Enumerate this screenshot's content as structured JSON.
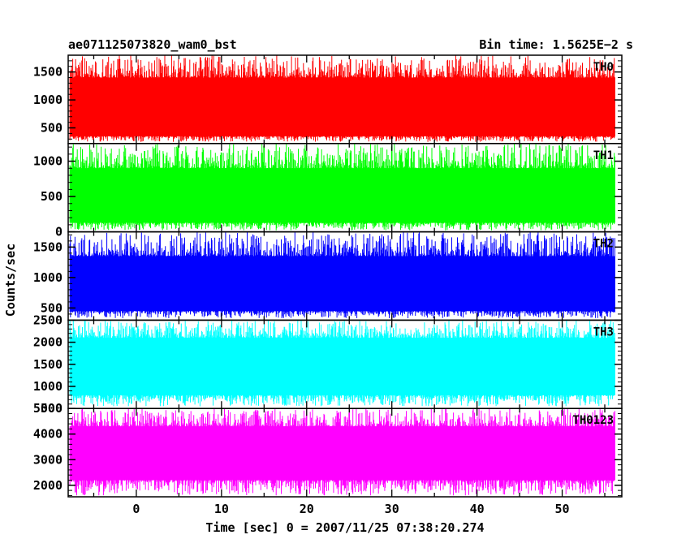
{
  "header": {
    "left_title": "ae071125073820_wam0_bst",
    "right_title": "Bin time: 1.5625E−2 s"
  },
  "chart_data": {
    "type": "line",
    "xlabel": "Time [sec] 0 = 2007/11/25 07:38:20.274",
    "ylabel": "Counts/sec",
    "xlim": [
      -8,
      57
    ],
    "x_ticks": [
      0,
      10,
      20,
      30,
      40,
      50
    ],
    "x_ticklabels": [
      "0",
      "10",
      "20",
      "30",
      "40",
      "50"
    ],
    "data_x_range": [
      -7.8,
      56.2
    ],
    "bin_time_s": 0.015625,
    "panels": [
      {
        "name": "TH0",
        "color": "#ff0000",
        "ylim": [
          220,
          1800
        ],
        "y_ticks": [
          500,
          1000,
          1500
        ],
        "y_ticklabels": [
          "500",
          "1000",
          "1500"
        ],
        "mean": 800,
        "typical_min": 350,
        "typical_max": 1400,
        "min": 250,
        "max": 1800
      },
      {
        "name": "TH1",
        "color": "#00ff00",
        "ylim": [
          0,
          1250
        ],
        "y_ticks": [
          0,
          500,
          1000
        ],
        "y_ticklabels": [
          "0",
          "500",
          "1000"
        ],
        "mean": 480,
        "typical_min": 130,
        "typical_max": 900,
        "min": 20,
        "max": 1250
      },
      {
        "name": "TH2",
        "color": "#0000ff",
        "ylim": [
          300,
          1750
        ],
        "y_ticks": [
          500,
          1000,
          1500
        ],
        "y_ticklabels": [
          "500",
          "1000",
          "1500"
        ],
        "mean": 840,
        "typical_min": 450,
        "typical_max": 1350,
        "min": 330,
        "max": 1750
      },
      {
        "name": "TH3",
        "color": "#00ffff",
        "ylim": [
          500,
          2500
        ],
        "y_ticks": [
          500,
          1000,
          1500,
          2000,
          2500
        ],
        "y_ticklabels": [
          "500",
          "1000",
          "1500",
          "2000",
          "2500"
        ],
        "mean": 1400,
        "typical_min": 800,
        "typical_max": 2100,
        "min": 550,
        "max": 2500
      },
      {
        "name": "TH0123",
        "color": "#ff00ff",
        "ylim": [
          1550,
          5000
        ],
        "y_ticks": [
          2000,
          3000,
          4000,
          5000
        ],
        "y_ticklabels": [
          "2000",
          "3000",
          "4000",
          "5000"
        ],
        "mean": 3300,
        "typical_min": 2200,
        "typical_max": 4300,
        "min": 1600,
        "max": 5000
      }
    ]
  }
}
